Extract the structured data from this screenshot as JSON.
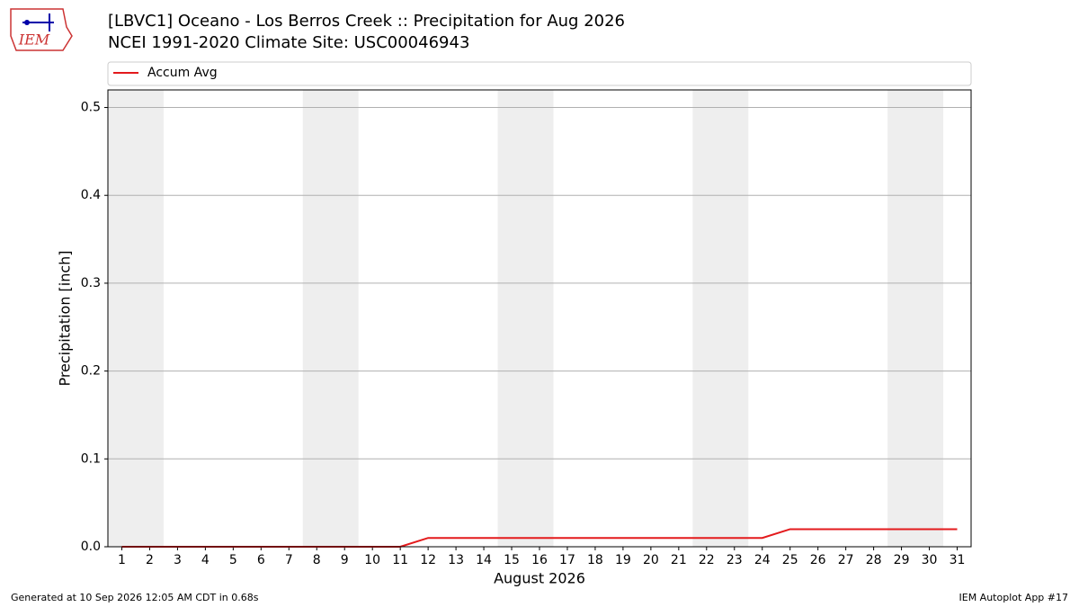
{
  "logo_text": "IEM",
  "chart_data": {
    "type": "line",
    "title": "[LBVC1] Oceano - Los Berros Creek :: Precipitation for Aug 2026",
    "subtitle": "NCEI 1991-2020 Climate Site: USC00046943",
    "xlabel": "August 2026",
    "ylabel": "Precipitation [inch]",
    "x": [
      1,
      2,
      3,
      4,
      5,
      6,
      7,
      8,
      9,
      10,
      11,
      12,
      13,
      14,
      15,
      16,
      17,
      18,
      19,
      20,
      21,
      22,
      23,
      24,
      25,
      26,
      27,
      28,
      29,
      30,
      31
    ],
    "series": [
      {
        "name": "Accum Avg",
        "color": "#e31a1c",
        "values": [
          0,
          0,
          0,
          0,
          0,
          0,
          0,
          0,
          0,
          0,
          0,
          0.01,
          0.01,
          0.01,
          0.01,
          0.01,
          0.01,
          0.01,
          0.01,
          0.01,
          0.01,
          0.01,
          0.01,
          0.01,
          0.02,
          0.02,
          0.02,
          0.02,
          0.02,
          0.02,
          0.02
        ]
      }
    ],
    "xlim": [
      0.5,
      31.5
    ],
    "xticks": [
      1,
      2,
      3,
      4,
      5,
      6,
      7,
      8,
      9,
      10,
      11,
      12,
      13,
      14,
      15,
      16,
      17,
      18,
      19,
      20,
      21,
      22,
      23,
      24,
      25,
      26,
      27,
      28,
      29,
      30,
      31
    ],
    "ylim": [
      0,
      0.52
    ],
    "yticks": [
      {
        "value": 0,
        "label": "0.0"
      },
      0.1,
      0.2,
      0.3,
      0.4,
      0.5
    ],
    "grid": true,
    "shaded_spans": [
      [
        0.5,
        2.5
      ],
      [
        7.5,
        9.5
      ],
      [
        14.5,
        16.5
      ],
      [
        21.5,
        23.5
      ],
      [
        28.5,
        30.5
      ]
    ],
    "shade_color": "#eeeeee",
    "legend": "top"
  },
  "footer": {
    "left": "Generated at 10 Sep 2026 12:05 AM CDT in 0.68s",
    "right": "IEM Autoplot App #17"
  }
}
